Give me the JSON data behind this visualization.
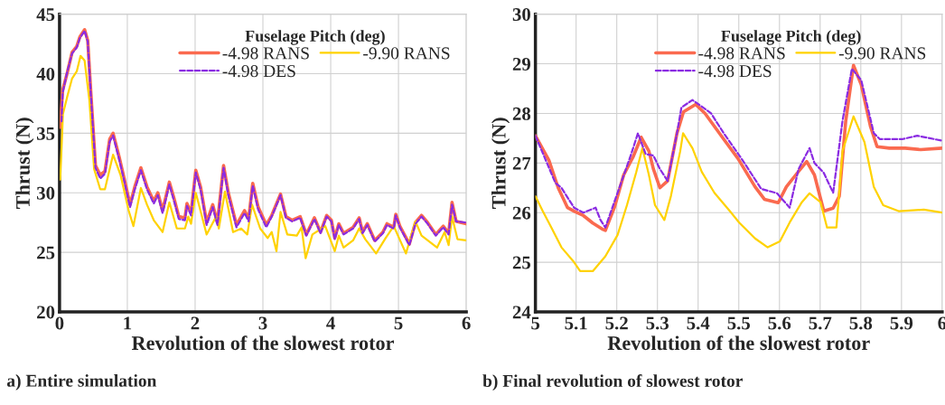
{
  "chart_data": [
    {
      "type": "line",
      "xlabel": "Revolution of the slowest rotor",
      "ylabel": "Thrust (N)",
      "legend_title": "Fuselage Pitch (deg)",
      "legend": "top right",
      "grid": true,
      "xlim": [
        0,
        6
      ],
      "xticks": [
        0,
        1,
        2,
        3,
        4,
        5,
        6
      ],
      "ylim": [
        20,
        45
      ],
      "yticks": [
        20,
        25,
        30,
        35,
        40,
        45
      ],
      "annotations": [
        "a) Entire simulation"
      ],
      "series": [
        {
          "name": "-4.98 RANS",
          "color": "#fa6a4f",
          "line_style": "solid",
          "x": [
            0.01,
            0.046,
            0.115,
            0.185,
            0.254,
            0.3,
            0.37,
            0.416,
            0.46,
            0.53,
            0.6,
            0.67,
            0.74,
            0.79,
            0.88,
            0.95,
            1.04,
            1.11,
            1.2,
            1.29,
            1.39,
            1.45,
            1.52,
            1.62,
            1.69,
            1.76,
            1.85,
            1.88,
            1.94,
            2.01,
            2.08,
            2.17,
            2.26,
            2.33,
            2.42,
            2.49,
            2.61,
            2.73,
            2.79,
            2.85,
            2.93,
            3.05,
            3.13,
            3.26,
            3.34,
            3.43,
            3.55,
            3.64,
            3.76,
            3.85,
            3.94,
            4.01,
            4.06,
            4.12,
            4.19,
            4.33,
            4.42,
            4.47,
            4.54,
            4.65,
            4.77,
            4.83,
            4.93,
            4.96,
            5.02,
            5.16,
            5.25,
            5.34,
            5.43,
            5.55,
            5.66,
            5.74,
            5.79,
            5.85,
            6.0
          ],
          "values": [
            35.5,
            38.6,
            40.1,
            41.8,
            42.3,
            43.1,
            43.7,
            42.8,
            38.6,
            32.3,
            31.5,
            31.8,
            34.5,
            35.0,
            33.0,
            31.3,
            29.0,
            30.5,
            32.1,
            30.5,
            29.3,
            30.0,
            28.5,
            30.9,
            29.5,
            28.0,
            27.9,
            29.1,
            28.3,
            31.9,
            30.5,
            27.5,
            29.0,
            27.5,
            32.3,
            30.0,
            27.3,
            28.5,
            27.8,
            30.8,
            28.8,
            27.3,
            28.1,
            29.9,
            28.0,
            27.7,
            28.0,
            26.5,
            27.9,
            26.7,
            28.1,
            27.7,
            26.2,
            27.4,
            26.6,
            27.1,
            27.9,
            26.7,
            27.4,
            26.0,
            26.7,
            27.4,
            27.1,
            28.2,
            27.2,
            25.7,
            27.5,
            28.1,
            27.5,
            26.5,
            27.2,
            26.6,
            29.2,
            27.6,
            27.4
          ]
        },
        {
          "name": "-9.90 RANS",
          "color": "#ffd200",
          "line_style": "solid",
          "x": [
            0.01,
            0.05,
            0.115,
            0.185,
            0.254,
            0.31,
            0.37,
            0.44,
            0.51,
            0.6,
            0.67,
            0.79,
            0.9,
            1.02,
            1.09,
            1.2,
            1.29,
            1.39,
            1.52,
            1.62,
            1.73,
            1.85,
            1.9,
            1.94,
            2.01,
            2.17,
            2.31,
            2.35,
            2.44,
            2.56,
            2.68,
            2.77,
            2.84,
            2.96,
            3.07,
            3.13,
            3.2,
            3.26,
            3.36,
            3.5,
            3.57,
            3.63,
            3.73,
            3.92,
            4.06,
            4.12,
            4.19,
            4.33,
            4.42,
            4.51,
            4.67,
            4.81,
            4.93,
            5.11,
            5.25,
            5.34,
            5.57,
            5.68,
            5.74,
            5.79,
            5.87,
            6.0
          ],
          "values": [
            31.1,
            36.6,
            38.1,
            39.6,
            40.2,
            41.5,
            41.1,
            37.8,
            32.0,
            30.3,
            30.3,
            33.2,
            31.5,
            28.5,
            27.2,
            30.4,
            29.0,
            27.7,
            26.7,
            29.2,
            27.0,
            27.0,
            28.0,
            27.4,
            30.0,
            26.5,
            28.0,
            27.0,
            30.1,
            26.7,
            27.0,
            26.5,
            29.0,
            27.0,
            26.2,
            26.7,
            25.1,
            28.4,
            26.5,
            26.4,
            27.1,
            24.5,
            26.5,
            27.2,
            25.1,
            26.4,
            25.4,
            26.0,
            27.0,
            26.1,
            24.9,
            26.2,
            27.2,
            24.9,
            27.6,
            26.4,
            25.4,
            26.7,
            25.6,
            28.0,
            26.1,
            26.0
          ]
        },
        {
          "name": "-4.98 DES",
          "color": "#8a2be2",
          "line_style": "dashed",
          "x": [
            0.03,
            0.046,
            0.115,
            0.185,
            0.254,
            0.3,
            0.37,
            0.416,
            0.46,
            0.53,
            0.6,
            0.67,
            0.74,
            0.79,
            0.88,
            0.95,
            1.04,
            1.11,
            1.2,
            1.29,
            1.39,
            1.45,
            1.52,
            1.62,
            1.69,
            1.76,
            1.85,
            1.88,
            1.94,
            2.01,
            2.08,
            2.17,
            2.26,
            2.33,
            2.42,
            2.49,
            2.61,
            2.73,
            2.79,
            2.85,
            2.93,
            3.05,
            3.13,
            3.26,
            3.34,
            3.43,
            3.55,
            3.64,
            3.76,
            3.85,
            3.94,
            4.01,
            4.06,
            4.12,
            4.19,
            4.33,
            4.42,
            4.47,
            4.54,
            4.65,
            4.77,
            4.83,
            4.93,
            4.96,
            5.02,
            5.16,
            5.25,
            5.34,
            5.43,
            5.55,
            5.66,
            5.74,
            5.79,
            5.85,
            6.0
          ],
          "values": [
            36.0,
            38.4,
            40.2,
            41.7,
            42.2,
            43.0,
            43.6,
            42.7,
            38.4,
            32.1,
            31.2,
            31.6,
            34.3,
            34.8,
            32.8,
            31.1,
            28.8,
            30.3,
            31.9,
            30.3,
            29.1,
            29.8,
            28.3,
            30.7,
            29.3,
            27.8,
            27.7,
            28.9,
            28.1,
            31.7,
            30.3,
            27.3,
            28.8,
            27.3,
            32.1,
            29.8,
            27.1,
            28.3,
            27.6,
            30.6,
            28.6,
            27.1,
            28.0,
            29.8,
            27.9,
            27.6,
            27.9,
            26.4,
            27.8,
            26.6,
            28.0,
            27.6,
            26.1,
            27.3,
            26.5,
            27.0,
            27.8,
            26.6,
            27.3,
            25.9,
            26.6,
            27.3,
            27.0,
            28.1,
            27.1,
            25.6,
            27.4,
            28.0,
            27.4,
            26.4,
            27.1,
            26.5,
            29.0,
            27.6,
            27.5
          ]
        }
      ]
    },
    {
      "type": "line",
      "xlabel": "Revolution of the slowest rotor",
      "ylabel": "Thrust (N)",
      "legend_title": "Fuselage Pitch (deg)",
      "legend": "top right",
      "grid": true,
      "xlim": [
        5,
        6
      ],
      "xticks": [
        5,
        5.1,
        5.2,
        5.3,
        5.4,
        5.5,
        5.6,
        5.7,
        5.8,
        5.9,
        6
      ],
      "ylim": [
        24,
        30
      ],
      "yticks": [
        24,
        25,
        26,
        27,
        28,
        29,
        30
      ],
      "annotations": [
        "b) Final revolution of slowest rotor"
      ],
      "series": [
        {
          "name": "-4.98 RANS",
          "color": "#fa6a4f",
          "line_style": "solid",
          "x": [
            5.0,
            5.033,
            5.056,
            5.079,
            5.095,
            5.118,
            5.141,
            5.164,
            5.172,
            5.194,
            5.217,
            5.24,
            5.26,
            5.279,
            5.29,
            5.306,
            5.325,
            5.348,
            5.364,
            5.394,
            5.417,
            5.463,
            5.498,
            5.54,
            5.563,
            5.597,
            5.617,
            5.64,
            5.667,
            5.686,
            5.709,
            5.732,
            5.747,
            5.763,
            5.782,
            5.801,
            5.824,
            5.84,
            5.87,
            5.909,
            5.947,
            6.0
          ],
          "values": [
            27.55,
            27.06,
            26.5,
            26.1,
            26.03,
            25.94,
            25.79,
            25.67,
            25.64,
            26.1,
            26.76,
            27.12,
            27.52,
            27.24,
            26.88,
            26.5,
            26.64,
            27.6,
            28.03,
            28.18,
            28.0,
            27.48,
            27.09,
            26.52,
            26.27,
            26.2,
            26.52,
            26.76,
            27.03,
            26.76,
            26.03,
            26.09,
            26.33,
            27.85,
            28.97,
            28.58,
            27.73,
            27.33,
            27.3,
            27.3,
            27.27,
            27.3
          ]
        },
        {
          "name": "-9.90 RANS",
          "color": "#ffd200",
          "line_style": "solid",
          "x": [
            5.0,
            5.018,
            5.041,
            5.064,
            5.095,
            5.11,
            5.141,
            5.172,
            5.202,
            5.225,
            5.248,
            5.263,
            5.279,
            5.294,
            5.317,
            5.333,
            5.356,
            5.363,
            5.386,
            5.409,
            5.44,
            5.478,
            5.501,
            5.54,
            5.571,
            5.601,
            5.625,
            5.655,
            5.674,
            5.701,
            5.717,
            5.74,
            5.755,
            5.782,
            5.809,
            5.832,
            5.855,
            5.893,
            5.955,
            6.0
          ],
          "values": [
            26.33,
            26.03,
            25.67,
            25.3,
            25.0,
            24.82,
            24.82,
            25.12,
            25.55,
            26.15,
            26.82,
            27.3,
            26.76,
            26.15,
            25.85,
            26.33,
            27.24,
            27.6,
            27.3,
            26.82,
            26.4,
            26.03,
            25.8,
            25.48,
            25.3,
            25.42,
            25.8,
            26.21,
            26.39,
            26.21,
            25.7,
            25.7,
            27.24,
            27.94,
            27.42,
            26.52,
            26.15,
            26.03,
            26.06,
            26.0
          ]
        },
        {
          "name": "-4.98 DES",
          "color": "#8a2be2",
          "line_style": "dashed",
          "x": [
            5.0,
            5.049,
            5.064,
            5.095,
            5.118,
            5.148,
            5.16,
            5.172,
            5.202,
            5.233,
            5.252,
            5.271,
            5.29,
            5.306,
            5.325,
            5.348,
            5.359,
            5.386,
            5.402,
            5.432,
            5.463,
            5.509,
            5.555,
            5.594,
            5.625,
            5.647,
            5.674,
            5.686,
            5.709,
            5.732,
            5.755,
            5.778,
            5.801,
            5.832,
            5.847,
            5.901,
            5.939,
            6.0
          ],
          "values": [
            27.55,
            26.6,
            26.5,
            26.1,
            26.0,
            26.1,
            25.85,
            25.7,
            26.4,
            27.12,
            27.6,
            27.18,
            27.15,
            26.88,
            26.64,
            27.6,
            28.12,
            28.27,
            28.18,
            28.0,
            27.6,
            27.06,
            26.48,
            26.39,
            26.1,
            26.88,
            27.3,
            27.0,
            26.8,
            26.4,
            27.85,
            28.9,
            28.67,
            27.6,
            27.48,
            27.48,
            27.55,
            27.45
          ]
        }
      ]
    }
  ]
}
